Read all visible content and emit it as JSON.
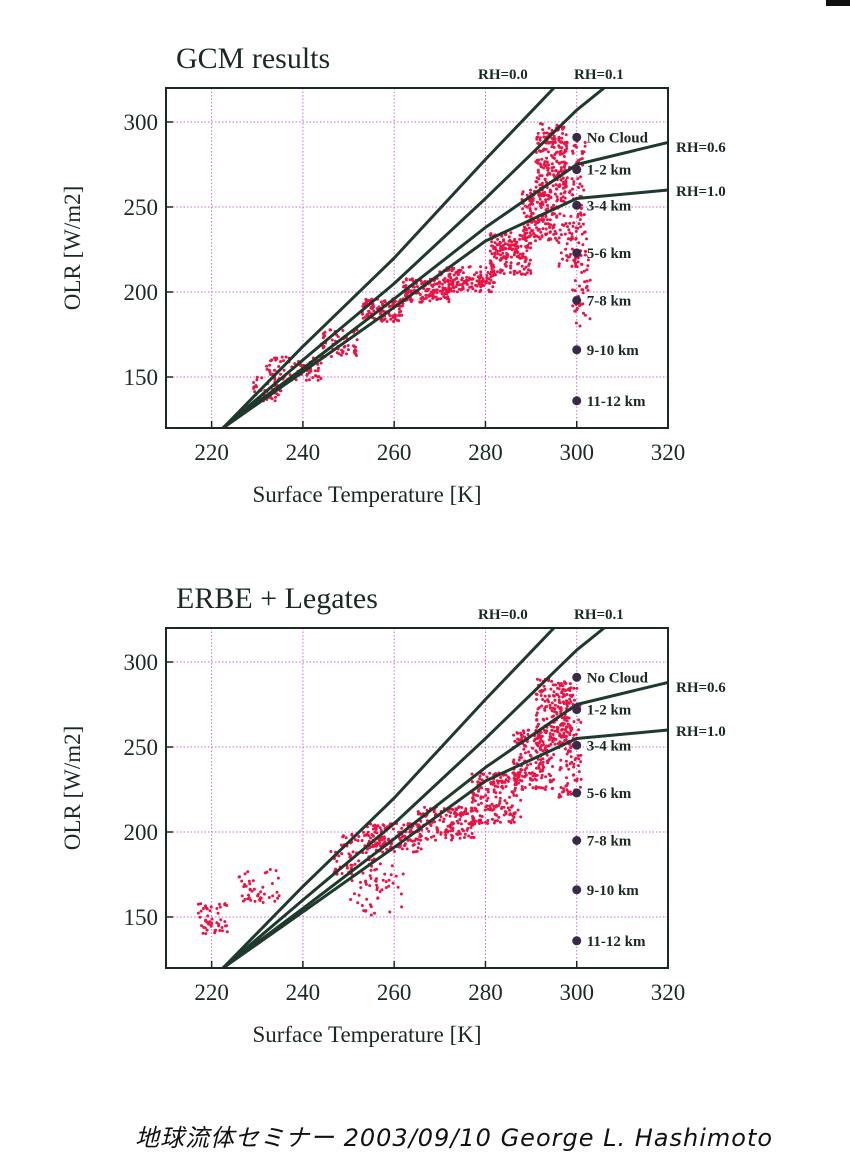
{
  "chart_data": [
    {
      "type": "scatter",
      "title": "GCM results",
      "xlabel": "Surface Temperature  [K]",
      "ylabel": "OLR  [W/m2]",
      "xlim": [
        210,
        320
      ],
      "ylim": [
        120,
        320
      ],
      "xticks": [
        "220",
        "240",
        "260",
        "280",
        "300",
        "320"
      ],
      "yticks": [
        "150",
        "200",
        "250",
        "300"
      ],
      "grid": true,
      "colors": {
        "scatter": "#ee1144",
        "curves": "#1e3a2c",
        "grid": "#c96bd6",
        "markers": "#3a2a4a"
      },
      "curves": [
        {
          "name": "RH=0.0",
          "points": [
            [
              222.5,
              120
            ],
            [
              240,
              168
            ],
            [
              260,
              220
            ],
            [
              280,
              278
            ],
            [
              290,
              306
            ],
            [
              295,
              320
            ]
          ]
        },
        {
          "name": "RH=0.1",
          "points": [
            [
              222.5,
              120
            ],
            [
              240,
              160
            ],
            [
              260,
              205
            ],
            [
              280,
              255
            ],
            [
              300,
              307
            ],
            [
              306,
              320
            ]
          ]
        },
        {
          "name": "RH=0.6",
          "points": [
            [
              222.5,
              120
            ],
            [
              240,
              155
            ],
            [
              260,
              196
            ],
            [
              280,
              238
            ],
            [
              300,
              275
            ],
            [
              320,
              288
            ]
          ]
        },
        {
          "name": "RH=1.0",
          "points": [
            [
              222.5,
              120
            ],
            [
              240,
              153
            ],
            [
              260,
              191
            ],
            [
              280,
              230
            ],
            [
              300,
              255
            ],
            [
              320,
              260
            ]
          ]
        }
      ],
      "cloud_markers": [
        {
          "label": "No Cloud",
          "x": 300,
          "y": 291
        },
        {
          "label": "1-2 km",
          "x": 300,
          "y": 272
        },
        {
          "label": "3-4 km",
          "x": 300,
          "y": 251
        },
        {
          "label": "5-6 km",
          "x": 300,
          "y": 223
        },
        {
          "label": "7-8 km",
          "x": 300,
          "y": 195
        },
        {
          "label": "9-10 km",
          "x": 300,
          "y": 166
        },
        {
          "label": "11-12 km",
          "x": 300,
          "y": 136
        }
      ],
      "scatter_clusters": [
        {
          "x": [
            229,
            236
          ],
          "y": [
            135,
            150
          ],
          "n": 40
        },
        {
          "x": [
            232,
            244
          ],
          "y": [
            148,
            162
          ],
          "n": 80
        },
        {
          "x": [
            244,
            252
          ],
          "y": [
            162,
            178
          ],
          "n": 60
        },
        {
          "x": [
            253,
            262
          ],
          "y": [
            182,
            196
          ],
          "n": 110
        },
        {
          "x": [
            262,
            272
          ],
          "y": [
            194,
            208
          ],
          "n": 130
        },
        {
          "x": [
            270,
            282
          ],
          "y": [
            200,
            215
          ],
          "n": 150
        },
        {
          "x": [
            281,
            290
          ],
          "y": [
            210,
            235
          ],
          "n": 170
        },
        {
          "x": [
            288,
            296
          ],
          "y": [
            230,
            260
          ],
          "n": 180
        },
        {
          "x": [
            291,
            298
          ],
          "y": [
            258,
            300
          ],
          "n": 190
        },
        {
          "x": [
            296,
            302
          ],
          "y": [
            215,
            290
          ],
          "n": 130
        },
        {
          "x": [
            299,
            303
          ],
          "y": [
            180,
            240
          ],
          "n": 50
        }
      ]
    },
    {
      "type": "scatter",
      "title": "ERBE + Legates",
      "xlabel": "Surface Temperature  [K]",
      "ylabel": "OLR  [W/m2]",
      "xlim": [
        210,
        320
      ],
      "ylim": [
        120,
        320
      ],
      "xticks": [
        "220",
        "240",
        "260",
        "280",
        "300",
        "320"
      ],
      "yticks": [
        "150",
        "200",
        "250",
        "300"
      ],
      "grid": true,
      "colors": {
        "scatter": "#ee1144",
        "curves": "#1e3a2c",
        "grid": "#c96bd6",
        "markers": "#3a2a4a"
      },
      "curves": [
        {
          "name": "RH=0.0",
          "points": [
            [
              222.5,
              120
            ],
            [
              240,
              168
            ],
            [
              260,
              220
            ],
            [
              280,
              278
            ],
            [
              290,
              306
            ],
            [
              295,
              320
            ]
          ]
        },
        {
          "name": "RH=0.1",
          "points": [
            [
              222.5,
              120
            ],
            [
              240,
              160
            ],
            [
              260,
              205
            ],
            [
              280,
              255
            ],
            [
              300,
              307
            ],
            [
              306,
              320
            ]
          ]
        },
        {
          "name": "RH=0.6",
          "points": [
            [
              222.5,
              120
            ],
            [
              240,
              155
            ],
            [
              260,
              196
            ],
            [
              280,
              238
            ],
            [
              300,
              275
            ],
            [
              320,
              288
            ]
          ]
        },
        {
          "name": "RH=1.0",
          "points": [
            [
              222.5,
              120
            ],
            [
              240,
              153
            ],
            [
              260,
              191
            ],
            [
              280,
              230
            ],
            [
              300,
              255
            ],
            [
              320,
              260
            ]
          ]
        }
      ],
      "cloud_markers": [
        {
          "label": "No Cloud",
          "x": 300,
          "y": 291
        },
        {
          "label": "1-2 km",
          "x": 300,
          "y": 272
        },
        {
          "label": "3-4 km",
          "x": 300,
          "y": 251
        },
        {
          "label": "5-6 km",
          "x": 300,
          "y": 223
        },
        {
          "label": "7-8 km",
          "x": 300,
          "y": 195
        },
        {
          "label": "9-10 km",
          "x": 300,
          "y": 166
        },
        {
          "label": "11-12 km",
          "x": 300,
          "y": 136
        }
      ],
      "scatter_clusters": [
        {
          "x": [
            217,
            224
          ],
          "y": [
            140,
            158
          ],
          "n": 50
        },
        {
          "x": [
            226,
            235
          ],
          "y": [
            158,
            178
          ],
          "n": 45
        },
        {
          "x": [
            246,
            254
          ],
          "y": [
            175,
            200
          ],
          "n": 40
        },
        {
          "x": [
            250,
            262
          ],
          "y": [
            150,
            200
          ],
          "n": 80
        },
        {
          "x": [
            254,
            266
          ],
          "y": [
            188,
            205
          ],
          "n": 140
        },
        {
          "x": [
            265,
            278
          ],
          "y": [
            195,
            215
          ],
          "n": 150
        },
        {
          "x": [
            277,
            288
          ],
          "y": [
            205,
            235
          ],
          "n": 170
        },
        {
          "x": [
            286,
            295
          ],
          "y": [
            225,
            260
          ],
          "n": 180
        },
        {
          "x": [
            291,
            299
          ],
          "y": [
            250,
            290
          ],
          "n": 190
        },
        {
          "x": [
            296,
            301
          ],
          "y": [
            220,
            285
          ],
          "n": 110
        }
      ]
    }
  ],
  "footer": {
    "text": "地球流体セミナー  2003/09/10   George L. Hashimoto"
  }
}
